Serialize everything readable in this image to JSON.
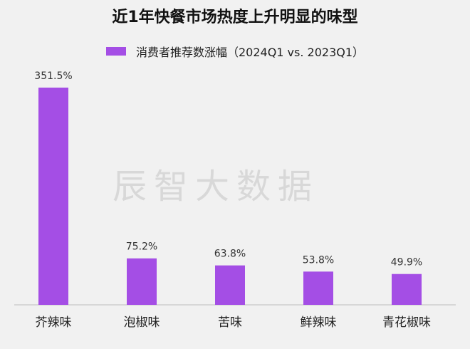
{
  "title": "近1年快餐市场热度上升明显的味型",
  "watermark": "辰智大数据",
  "legend": {
    "label": "消费者推荐数涨幅（2024Q1 vs. 2023Q1）"
  },
  "colors": {
    "bar": "#a44ee5",
    "axis": "#bdbdbd"
  },
  "chart_data": {
    "type": "bar",
    "categories": [
      "芥辣味",
      "泡椒味",
      "苦味",
      "鲜辣味",
      "青花椒味"
    ],
    "series": [
      {
        "name": "消费者推荐数涨幅（2024Q1 vs. 2023Q1）",
        "values": [
          351.5,
          75.2,
          63.8,
          53.8,
          49.9
        ],
        "labels": [
          "351.5%",
          "75.2%",
          "63.8%",
          "53.8%",
          "49.9%"
        ]
      }
    ],
    "ylim": [
      0,
      351.5
    ],
    "grid": false,
    "legend_position": "top"
  }
}
